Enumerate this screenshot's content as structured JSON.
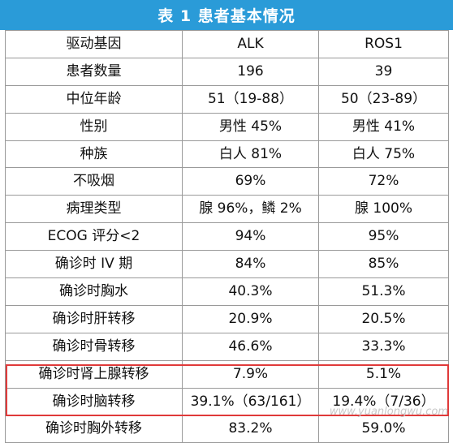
{
  "title": "表 1  患者基本情况",
  "columns": [
    "驱动基因",
    "ALK",
    "ROS1"
  ],
  "rows": [
    [
      "患者数量",
      "196",
      "39"
    ],
    [
      "中位年龄",
      "51（19-88）",
      "50（23-89）"
    ],
    [
      "性别",
      "男性 45%",
      "男性 41%"
    ],
    [
      "种族",
      "白人 81%",
      "白人 75%"
    ],
    [
      "不吸烟",
      "69%",
      "72%"
    ],
    [
      "病理类型",
      "腺 96%，鳞 2%",
      "腺 100%"
    ],
    [
      "ECOG 评分<2",
      "94%",
      "95%"
    ],
    [
      "确诊时 IV 期",
      "84%",
      "85%"
    ],
    [
      "确诊时胸水",
      "40.3%",
      "51.3%"
    ],
    [
      "确诊时肝转移",
      "20.9%",
      "20.5%"
    ],
    [
      "确诊时骨转移",
      "46.6%",
      "33.3%"
    ],
    [
      "确诊时肾上腺转移",
      "7.9%",
      "5.1%"
    ],
    [
      "确诊时脑转移",
      "39.1%（63/161）",
      "19.4%（7/36）"
    ],
    [
      "确诊时胸外转移",
      "83.2%",
      "59.0%"
    ]
  ],
  "highlight_color": "#e03a3a",
  "header_color": "#2a9bd8",
  "watermark": "www.yuanlongwu.com"
}
